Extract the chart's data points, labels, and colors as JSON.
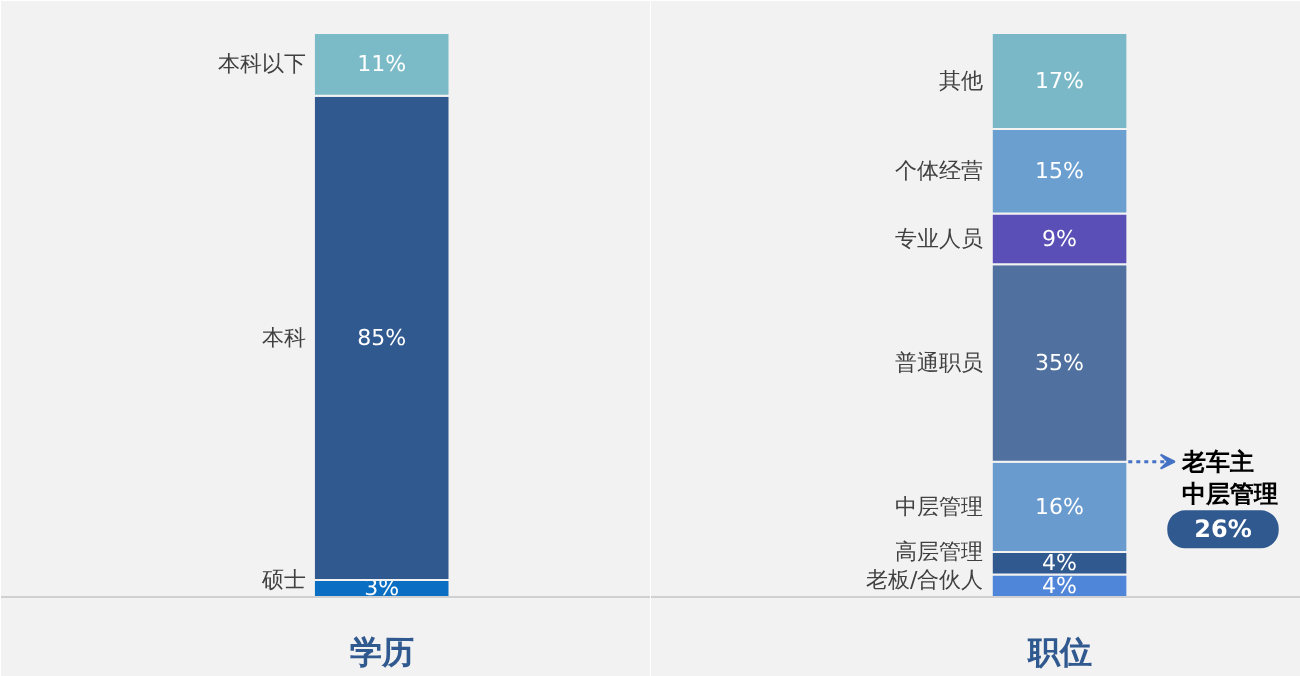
{
  "chart_data": [
    {
      "type": "bar",
      "stacked": true,
      "categories": [
        "学历"
      ],
      "series": [
        {
          "name": "硕士",
          "color": "#0a6fc2",
          "values": [
            3
          ],
          "value_labels": [
            "3%"
          ]
        },
        {
          "name": "本科",
          "color": "#30598f",
          "values": [
            85
          ],
          "value_labels": [
            "85%"
          ]
        },
        {
          "name": "本科以下",
          "color": "#7bbac7",
          "values": [
            11
          ],
          "value_labels": [
            "11%"
          ]
        }
      ]
    },
    {
      "type": "bar",
      "stacked": true,
      "categories": [
        "职位"
      ],
      "annotations": [
        "老车主",
        "中层管理",
        "26%"
      ],
      "series": [
        {
          "name": "老板/合伙人",
          "color": "#4f86d9",
          "values": [
            4
          ],
          "value_labels": [
            "4%"
          ]
        },
        {
          "name": "高层管理",
          "color": "#30598f",
          "values": [
            4
          ],
          "value_labels": [
            "4%"
          ]
        },
        {
          "name": "中层管理",
          "color": "#6a9bcf",
          "values": [
            16
          ],
          "value_labels": [
            "16%"
          ]
        },
        {
          "name": "普通职员",
          "color": "#50709f",
          "values": [
            35
          ],
          "value_labels": [
            "35%"
          ]
        },
        {
          "name": "专业人员",
          "color": "#5a4fb6",
          "values": [
            9
          ],
          "value_labels": [
            "9%"
          ]
        },
        {
          "name": "个体经营",
          "color": "#6a9fd0",
          "values": [
            15
          ],
          "value_labels": [
            "15%"
          ]
        },
        {
          "name": "其他",
          "color": "#7bb8c7",
          "values": [
            17
          ],
          "value_labels": [
            "17%"
          ]
        }
      ]
    }
  ]
}
